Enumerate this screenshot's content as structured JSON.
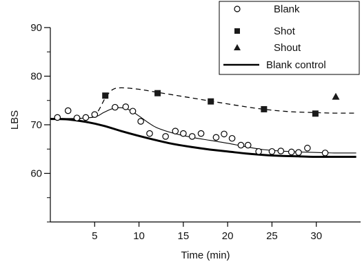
{
  "chart_data": {
    "type": "scatter",
    "xlabel": "Time (min)",
    "ylabel": "LBS",
    "xlim": [
      0,
      35
    ],
    "ylim": [
      50,
      90
    ],
    "xticks": [
      5,
      10,
      15,
      20,
      25,
      30
    ],
    "yticks": [
      60,
      70,
      80,
      90
    ],
    "legend_position": "top-right",
    "legend": [
      "Blank",
      "Shot",
      "Shout",
      "Blank control"
    ],
    "series": [
      {
        "name": "Blank",
        "marker": "open-circle",
        "x": [
          0.8,
          2.0,
          3.0,
          4.0,
          5.0,
          7.3,
          8.5,
          9.3,
          10.2,
          11.2,
          13.0,
          14.1,
          15.0,
          16.0,
          17.0,
          18.7,
          19.6,
          20.5,
          21.5,
          22.3,
          23.5,
          25.0,
          26.0,
          27.2,
          28.0,
          29.0,
          31.0
        ],
        "y": [
          71.5,
          72.9,
          71.4,
          71.5,
          72.1,
          73.6,
          73.7,
          72.8,
          70.7,
          68.2,
          67.6,
          68.7,
          68.2,
          67.6,
          68.2,
          67.4,
          68.1,
          67.2,
          65.8,
          65.8,
          64.5,
          64.5,
          64.6,
          64.4,
          64.3,
          65.2,
          64.2
        ]
      },
      {
        "name": "Shot",
        "marker": "filled-square",
        "x": [
          6.2,
          12.1,
          18.1,
          24.1,
          29.9
        ],
        "y": [
          76.0,
          76.5,
          74.8,
          73.2,
          72.3
        ]
      },
      {
        "name": "Shout",
        "marker": "filled-triangle",
        "x": [
          32.2
        ],
        "y": [
          75.8
        ]
      },
      {
        "name": "Blank control",
        "style": "thick-solid-line",
        "x": [
          0,
          2,
          4,
          6,
          8,
          10,
          12,
          14,
          16,
          18,
          20,
          22,
          24,
          26,
          28,
          30,
          32,
          34.5
        ],
        "y": [
          71.2,
          71.1,
          70.6,
          69.8,
          68.7,
          67.7,
          66.8,
          66.0,
          65.4,
          64.9,
          64.5,
          64.1,
          63.8,
          63.6,
          63.5,
          63.4,
          63.4,
          63.4
        ]
      }
    ],
    "fits": [
      {
        "style": "dashed-line",
        "x": [
          1,
          3,
          5,
          6.2,
          7,
          8,
          10,
          12,
          15,
          18,
          21,
          24,
          27,
          30,
          32,
          34.5
        ],
        "y": [
          71.2,
          71.2,
          72.0,
          75.5,
          77.2,
          77.6,
          77.3,
          76.7,
          75.8,
          74.9,
          74.0,
          73.2,
          72.7,
          72.5,
          72.4,
          72.4
        ]
      },
      {
        "style": "thin-solid-line",
        "x": [
          1,
          3,
          5,
          6,
          7,
          8,
          9,
          10,
          11,
          12,
          14,
          16,
          18,
          20,
          22,
          24,
          26,
          28,
          30,
          32,
          34.5
        ],
        "y": [
          71.3,
          71.3,
          71.6,
          72.5,
          73.3,
          73.5,
          73.0,
          71.8,
          70.5,
          69.4,
          68.2,
          67.4,
          66.8,
          66.2,
          65.5,
          64.9,
          64.6,
          64.4,
          64.3,
          64.2,
          64.2
        ]
      }
    ]
  }
}
